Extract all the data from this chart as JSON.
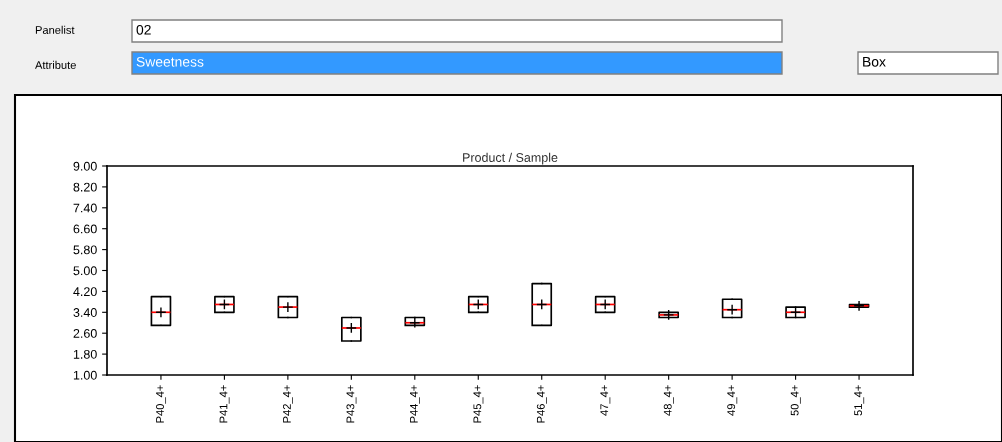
{
  "chart_data": {
    "type": "box",
    "title": "Product / Sample",
    "categories": [
      "P40_4+",
      "P41_4+",
      "P42_4+",
      "P43_4+",
      "P44_4+",
      "P45_4+",
      "P46_4+",
      "47_4+",
      "48_4+",
      "49_4+",
      "50_4+",
      "51_4+"
    ],
    "boxes": [
      {
        "low": 2.9,
        "q1": 2.9,
        "median": 3.4,
        "q3": 4.0,
        "high": 4.0,
        "mean": 3.4
      },
      {
        "low": 3.4,
        "q1": 3.4,
        "median": 3.7,
        "q3": 4.0,
        "high": 4.0,
        "mean": 3.7
      },
      {
        "low": 3.2,
        "q1": 3.2,
        "median": 3.6,
        "q3": 4.0,
        "high": 4.0,
        "mean": 3.6
      },
      {
        "low": 2.3,
        "q1": 2.3,
        "median": 2.8,
        "q3": 3.2,
        "high": 3.2,
        "mean": 2.8
      },
      {
        "low": 2.9,
        "q1": 2.9,
        "median": 3.0,
        "q3": 3.2,
        "high": 3.2,
        "mean": 3.0
      },
      {
        "low": 3.4,
        "q1": 3.4,
        "median": 3.7,
        "q3": 4.0,
        "high": 4.0,
        "mean": 3.7
      },
      {
        "low": 2.9,
        "q1": 2.9,
        "median": 3.7,
        "q3": 4.5,
        "high": 4.5,
        "mean": 3.7
      },
      {
        "low": 3.4,
        "q1": 3.4,
        "median": 3.7,
        "q3": 4.0,
        "high": 4.0,
        "mean": 3.7
      },
      {
        "low": 3.2,
        "q1": 3.2,
        "median": 3.3,
        "q3": 3.4,
        "high": 3.4,
        "mean": 3.3
      },
      {
        "low": 3.2,
        "q1": 3.2,
        "median": 3.5,
        "q3": 3.9,
        "high": 3.9,
        "mean": 3.5
      },
      {
        "low": 3.2,
        "q1": 3.2,
        "median": 3.4,
        "q3": 3.6,
        "high": 3.6,
        "mean": 3.4
      },
      {
        "low": 3.6,
        "q1": 3.6,
        "median": 3.65,
        "q3": 3.7,
        "high": 3.7,
        "mean": 3.65
      }
    ],
    "ylim": [
      1.0,
      9.0
    ],
    "yticks": [
      {
        "value": 1.0,
        "label": "1.00"
      },
      {
        "value": 1.8,
        "label": "1.80"
      },
      {
        "value": 2.6,
        "label": "2.60"
      },
      {
        "value": 3.4,
        "label": "3.40"
      },
      {
        "value": 4.2,
        "label": "4.20"
      },
      {
        "value": 5.0,
        "label": "5.00"
      },
      {
        "value": 5.8,
        "label": "5.80"
      },
      {
        "value": 6.6,
        "label": "6.60"
      },
      {
        "value": 7.4,
        "label": "7.40"
      },
      {
        "value": 8.2,
        "label": "8.20"
      },
      {
        "value": 9.0,
        "label": "9.00"
      }
    ],
    "grid": false,
    "annotations": [
      "Panelist",
      "02",
      "Attribute",
      "Sweetness",
      "Box"
    ]
  }
}
